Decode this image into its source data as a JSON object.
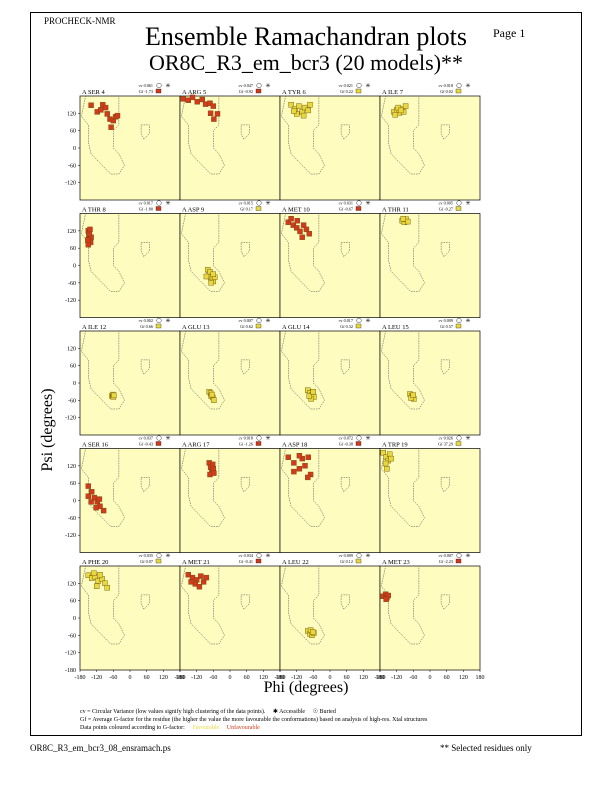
{
  "header": {
    "program": "PROCHECK-NMR",
    "page_label": "Page  1",
    "title": "Ensemble Ramachandran plots",
    "subtitle": "OR8C_R3_em_bcr3 (20 models)**"
  },
  "axes": {
    "xlabel": "Phi (degrees)",
    "ylabel": "Psi (degrees)"
  },
  "chart_data": {
    "type": "scatter",
    "title": "Ensemble Ramachandran plots",
    "xlabel": "Phi (degrees)",
    "ylabel": "Psi (degrees)",
    "xlim": [
      -180,
      180
    ],
    "ylim": [
      -180,
      180
    ],
    "x_ticks": [
      -180,
      -120,
      -60,
      0,
      60,
      120,
      180
    ],
    "y_ticks": [
      120,
      60,
      0,
      -60,
      -120
    ],
    "bottom_y_ticks": [
      -180,
      -120,
      -60,
      0,
      60,
      120
    ],
    "x_tick_labels": [
      "-180",
      "-120",
      "-60",
      "0",
      "60",
      "120",
      "180"
    ],
    "colors": {
      "background": "#fffcc0",
      "favourable": "#e8d840",
      "unfavourable": "#d23a1e"
    },
    "panels": [
      {
        "residue": "A SER 4",
        "cv": "cv 0.061",
        "gf": "Gf -1.73",
        "gf_color": "#d23a1e",
        "points": [
          [
            -140,
            148
          ],
          [
            -118,
            125
          ],
          [
            -98,
            150
          ],
          [
            -82,
            118
          ],
          [
            -72,
            100
          ],
          [
            -60,
            95
          ],
          [
            -52,
            108
          ],
          [
            -45,
            112
          ],
          [
            -68,
            72
          ],
          [
            -88,
            140
          ],
          [
            -105,
            132
          ]
        ]
      },
      {
        "residue": "A ARG 5",
        "cv": "cv 0.047",
        "gf": "Gf -0.92",
        "gf_color": "#d23a1e",
        "points": [
          [
            -168,
            170
          ],
          [
            -150,
            165
          ],
          [
            -135,
            175
          ],
          [
            -118,
            160
          ],
          [
            -100,
            168
          ],
          [
            -88,
            152
          ],
          [
            -72,
            155
          ],
          [
            -60,
            145
          ],
          [
            -70,
            120
          ],
          [
            -58,
            100
          ],
          [
            -45,
            118
          ]
        ]
      },
      {
        "residue": "A TYR 6",
        "cv": "cv 0.021",
        "gf": "Gf 0.22",
        "gf_color": "#e8d840",
        "points": [
          [
            -140,
            150
          ],
          [
            -125,
            135
          ],
          [
            -112,
            145
          ],
          [
            -100,
            125
          ],
          [
            -90,
            140
          ],
          [
            -78,
            130
          ],
          [
            -120,
            118
          ],
          [
            -95,
            112
          ],
          [
            -72,
            150
          ],
          [
            -130,
            128
          ]
        ]
      },
      {
        "residue": "A ILE 7",
        "cv": "cv 0.018",
        "gf": "Gf 0.02",
        "gf_color": "#e8d840",
        "points": [
          [
            -130,
            125
          ],
          [
            -120,
            132
          ],
          [
            -110,
            122
          ],
          [
            -100,
            135
          ],
          [
            -95,
            125
          ],
          [
            -115,
            140
          ],
          [
            -125,
            115
          ],
          [
            -105,
            130
          ],
          [
            -88,
            145
          ]
        ]
      },
      {
        "residue": "A THR 8",
        "cv": "cv 0.017",
        "gf": "Gf -1.80",
        "gf_color": "#d23a1e",
        "points": [
          [
            -150,
            120
          ],
          [
            -148,
            105
          ],
          [
            -145,
            92
          ],
          [
            -142,
            80
          ],
          [
            -150,
            72
          ],
          [
            -140,
            98
          ],
          [
            -146,
            110
          ],
          [
            -152,
            88
          ],
          [
            -144,
            125
          ]
        ]
      },
      {
        "residue": "A ASP 9",
        "cv": "cv 0.015",
        "gf": "Gf 0.17",
        "gf_color": "#e8d840",
        "points": [
          [
            -80,
            -15
          ],
          [
            -75,
            -30
          ],
          [
            -70,
            -40
          ],
          [
            -65,
            -48
          ],
          [
            -60,
            -55
          ],
          [
            -55,
            -40
          ],
          [
            -72,
            -22
          ],
          [
            -85,
            -38
          ],
          [
            -60,
            -30
          ],
          [
            -68,
            -60
          ]
        ]
      },
      {
        "residue": "A MET 10",
        "cv": "cv 0.031",
        "gf": "Gf -0.67",
        "gf_color": "#d23a1e",
        "points": [
          [
            -150,
            150
          ],
          [
            -132,
            140
          ],
          [
            -120,
            130
          ],
          [
            -108,
            118
          ],
          [
            -95,
            140
          ],
          [
            -85,
            125
          ],
          [
            -118,
            155
          ],
          [
            -75,
            110
          ],
          [
            -100,
            98
          ],
          [
            -140,
            162
          ]
        ]
      },
      {
        "residue": "A THR 11",
        "cv": "cv 0.005",
        "gf": "Gf -0.27",
        "gf_color": "#e8d840",
        "points": [
          [
            -100,
            155
          ],
          [
            -92,
            150
          ],
          [
            -86,
            160
          ],
          [
            -80,
            152
          ],
          [
            -96,
            162
          ]
        ]
      },
      {
        "residue": "A ILE 12",
        "cv": "cv 0.002",
        "gf": "Gf 0.66",
        "gf_color": "#e8d840",
        "points": [
          [
            -65,
            -45
          ],
          [
            -62,
            -40
          ],
          [
            -60,
            -48
          ],
          [
            -58,
            -43
          ]
        ]
      },
      {
        "residue": "A GLU 13",
        "cv": "cv 0.007",
        "gf": "Gf 0.62",
        "gf_color": "#e8d840",
        "points": [
          [
            -75,
            -30
          ],
          [
            -70,
            -35
          ],
          [
            -68,
            -45
          ],
          [
            -62,
            -50
          ],
          [
            -58,
            -60
          ],
          [
            -65,
            -40
          ]
        ]
      },
      {
        "residue": "A GLU 14",
        "cv": "cv 0.017",
        "gf": "Gf 0.32",
        "gf_color": "#e8d840",
        "points": [
          [
            -80,
            -25
          ],
          [
            -72,
            -35
          ],
          [
            -65,
            -42
          ],
          [
            -58,
            -48
          ],
          [
            -68,
            -55
          ],
          [
            -75,
            -45
          ],
          [
            -60,
            -30
          ]
        ]
      },
      {
        "residue": "A LEU 15",
        "cv": "cv 0.009",
        "gf": "Gf 0.57",
        "gf_color": "#e8d840",
        "points": [
          [
            -72,
            -38
          ],
          [
            -66,
            -45
          ],
          [
            -62,
            -50
          ],
          [
            -58,
            -55
          ],
          [
            -68,
            -52
          ],
          [
            -60,
            -42
          ]
        ]
      },
      {
        "residue": "A SER 16",
        "cv": "cv 0.037",
        "gf": "Gf -0.43",
        "gf_color": "#d23a1e",
        "points": [
          [
            -150,
            50
          ],
          [
            -138,
            30
          ],
          [
            -128,
            10
          ],
          [
            -118,
            -5
          ],
          [
            -108,
            -20
          ],
          [
            -95,
            -35
          ],
          [
            -140,
            -5
          ],
          [
            -122,
            -25
          ],
          [
            -150,
            15
          ],
          [
            -110,
            5
          ]
        ]
      },
      {
        "residue": "A ARG 17",
        "cv": "cv 0.018",
        "gf": "Gf -1.26",
        "gf_color": "#d23a1e",
        "points": [
          [
            -75,
            130
          ],
          [
            -70,
            115
          ],
          [
            -65,
            100
          ],
          [
            -60,
            110
          ],
          [
            -62,
            125
          ],
          [
            -72,
            90
          ],
          [
            -58,
            95
          ]
        ]
      },
      {
        "residue": "A ASP 18",
        "cv": "cv 0.072",
        "gf": "Gf -0.38",
        "gf_color": "#d23a1e",
        "points": [
          [
            -150,
            150
          ],
          [
            -130,
            130
          ],
          [
            -110,
            110
          ],
          [
            -100,
            145
          ],
          [
            -90,
            120
          ],
          [
            -78,
            150
          ],
          [
            -130,
            100
          ],
          [
            -70,
            90
          ],
          [
            -110,
            155
          ],
          [
            -80,
            80
          ]
        ]
      },
      {
        "residue": "A TRP 19",
        "cv": "cv 0.026",
        "gf": "Gf 37.29",
        "gf_color": "#e8d840",
        "points": [
          [
            -168,
            165
          ],
          [
            -158,
            150
          ],
          [
            -150,
            138
          ],
          [
            -145,
            160
          ],
          [
            -160,
            128
          ],
          [
            -140,
            145
          ],
          [
            -155,
            110
          ]
        ]
      },
      {
        "residue": "A PHE 20",
        "cv": "cv 0.035",
        "gf": "Gf 0.07",
        "gf_color": "#e8d840",
        "points": [
          [
            -150,
            148
          ],
          [
            -138,
            138
          ],
          [
            -125,
            142
          ],
          [
            -115,
            128
          ],
          [
            -100,
            135
          ],
          [
            -90,
            120
          ],
          [
            -130,
            155
          ],
          [
            -108,
            150
          ],
          [
            -120,
            110
          ],
          [
            -82,
            105
          ]
        ]
      },
      {
        "residue": "A MET 21",
        "cv": "cv 0.034",
        "gf": "Gf -0.41",
        "gf_color": "#d23a1e",
        "points": [
          [
            -150,
            150
          ],
          [
            -135,
            140
          ],
          [
            -120,
            132
          ],
          [
            -105,
            145
          ],
          [
            -95,
            125
          ],
          [
            -85,
            140
          ],
          [
            -125,
            118
          ],
          [
            -110,
            108
          ],
          [
            -140,
            125
          ]
        ]
      },
      {
        "residue": "A LEU 22",
        "cv": "cv 0.009",
        "gf": "Gf 0.12",
        "gf_color": "#e8d840",
        "points": [
          [
            -80,
            -45
          ],
          [
            -72,
            -55
          ],
          [
            -65,
            -60
          ],
          [
            -58,
            -52
          ],
          [
            -70,
            -42
          ],
          [
            -62,
            -48
          ]
        ]
      },
      {
        "residue": "A MET 23",
        "cv": "cv 0.007",
        "gf": "Gf -2.23",
        "gf_color": "#d23a1e",
        "points": [
          [
            -168,
            75
          ],
          [
            -160,
            82
          ],
          [
            -155,
            70
          ],
          [
            -150,
            78
          ],
          [
            -158,
            65
          ]
        ]
      }
    ]
  },
  "legend": {
    "cv_line": "cv = Circular Variance (low values signify high clustering of the data points).",
    "accessible": "Accessible",
    "buried": "Buried",
    "gf_line": "Gf = Average G-factor for the residue (the higher the value the more favourable the conformations) based on analysis of high-res. Xtal structures",
    "colour_line": "Data points coloured according to G-factor:",
    "favourable": "Favourable",
    "unfavourable": "Unfavourable"
  },
  "footer": {
    "filename": "OR8C_R3_em_bcr3_08_ensramach.ps",
    "selected_note": "** Selected residues only"
  }
}
